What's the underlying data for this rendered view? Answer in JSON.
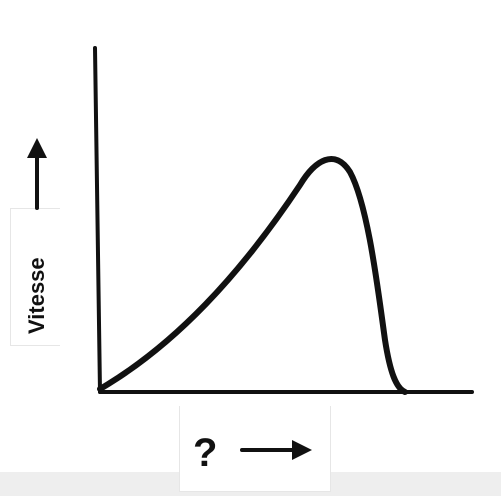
{
  "title": "",
  "y_axis": {
    "label": "Vitesse",
    "arrow": "up-arrow-icon"
  },
  "x_axis": {
    "label": "?",
    "arrow": "right-arrow-icon"
  },
  "curve": {
    "description_shape": "skewed-peak",
    "color": "#111111"
  },
  "colors": {
    "ink": "#111111",
    "background": "#ffffff",
    "band": "#eeeeee"
  }
}
